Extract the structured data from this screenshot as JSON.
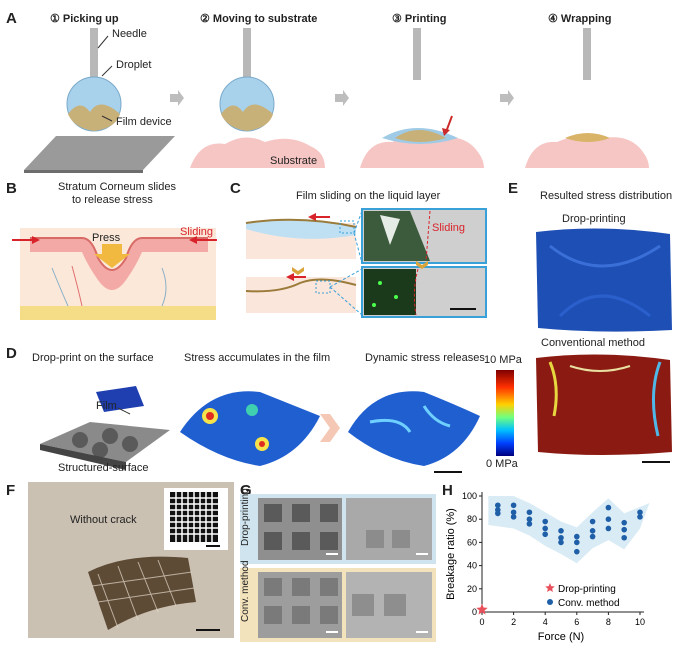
{
  "panels": {
    "A": {
      "label": "A",
      "steps": [
        "① Picking up",
        "② Moving to substrate",
        "③ Printing",
        "④ Wrapping"
      ],
      "annotations": {
        "needle": "Needle",
        "droplet": "Droplet",
        "film_device": "Film device",
        "substrate": "Substrate"
      }
    },
    "B": {
      "label": "B",
      "title_line1": "Stratum Corneum slides",
      "title_line2": "to release stress",
      "press": "Press",
      "sliding": "Sliding"
    },
    "C": {
      "label": "C",
      "title": "Film sliding on the liquid layer",
      "sliding": "Sliding"
    },
    "D": {
      "label": "D",
      "cap1": "Drop-print on the surface",
      "cap2": "Stress accumulates in the film",
      "cap3": "Dynamic stress releases",
      "film": "Film",
      "surface": "Structured-surface",
      "scale_max": "10 MPa",
      "scale_min": "0 MPa"
    },
    "E": {
      "label": "E",
      "title": "Resulted stress distribution",
      "sub1": "Drop-printing",
      "sub2": "Conventional method"
    },
    "F": {
      "label": "F",
      "annotation": "Without crack"
    },
    "G": {
      "label": "G",
      "row1": "Drop-printing",
      "row2": "Conv. method"
    },
    "H": {
      "label": "H"
    }
  },
  "chart_data": {
    "type": "scatter",
    "xlabel": "Force (N)",
    "ylabel": "Breakage ratio (%)",
    "xlim": [
      0,
      10
    ],
    "ylim": [
      0,
      100
    ],
    "xticks": [
      "0",
      "2",
      "4",
      "6",
      "8",
      "10"
    ],
    "yticks": [
      "0",
      "20",
      "40",
      "60",
      "80",
      "100"
    ],
    "legend_position": "bottom-right",
    "series": [
      {
        "name": "Drop-printing",
        "marker": "star",
        "color": "#e8505b",
        "points": [
          [
            0,
            2
          ]
        ]
      },
      {
        "name": "Conv. method",
        "marker": "circle",
        "color": "#1f5fa8",
        "points": [
          [
            1,
            92
          ],
          [
            1,
            88
          ],
          [
            1,
            85
          ],
          [
            2,
            92
          ],
          [
            2,
            86
          ],
          [
            2,
            82
          ],
          [
            3,
            86
          ],
          [
            3,
            80
          ],
          [
            3,
            76
          ],
          [
            4,
            78
          ],
          [
            4,
            72
          ],
          [
            4,
            67
          ],
          [
            5,
            70
          ],
          [
            5,
            64
          ],
          [
            5,
            60
          ],
          [
            6,
            65
          ],
          [
            6,
            60
          ],
          [
            6,
            52
          ],
          [
            7,
            78
          ],
          [
            7,
            70
          ],
          [
            7,
            65
          ],
          [
            8,
            90
          ],
          [
            8,
            80
          ],
          [
            8,
            72
          ],
          [
            9,
            77
          ],
          [
            9,
            71
          ],
          [
            9,
            64
          ],
          [
            10,
            86
          ],
          [
            10,
            82
          ]
        ]
      }
    ]
  },
  "colors": {
    "accent": "#1f5fa8",
    "star": "#e8505b",
    "skin": "#f4c4c0",
    "droplet": "#9fcbe6",
    "panel_bg": "#d9e9f2"
  }
}
